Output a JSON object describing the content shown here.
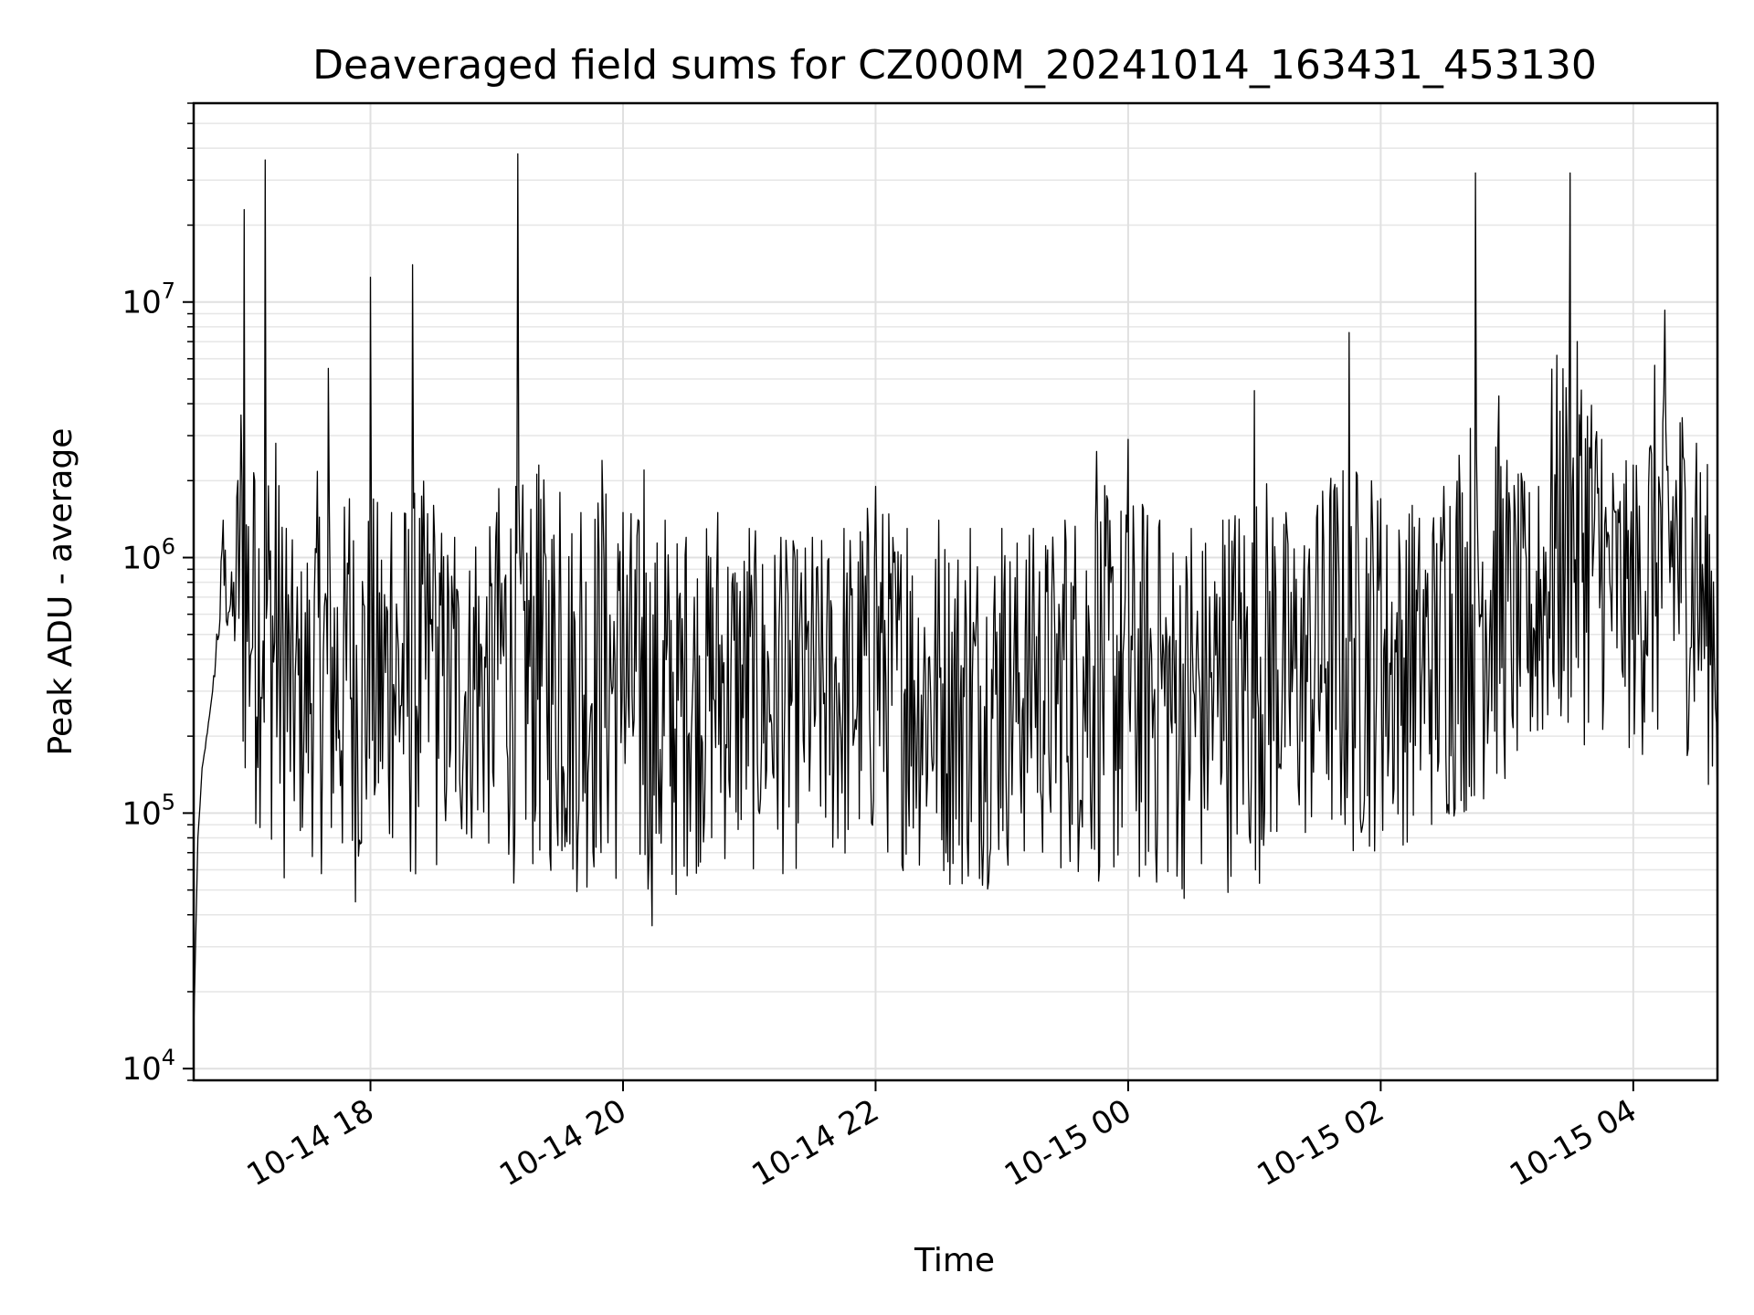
{
  "chart_data": {
    "type": "line",
    "title": "Deaveraged field sums for CZ000M_20241014_163431_453130",
    "xlabel": "Time",
    "ylabel": "Peak ADU - average",
    "yscale": "log",
    "ylim": [
      9000,
      60000000
    ],
    "xlim": [
      "2024-10-14 16:36",
      "2024-10-15 04:40"
    ],
    "grid": true,
    "legend": "none",
    "line_color": "#000000",
    "x_ticks": [
      {
        "label": "10-14 18",
        "value": "2024-10-14 18:00"
      },
      {
        "label": "10-14 20",
        "value": "2024-10-14 20:00"
      },
      {
        "label": "10-14 22",
        "value": "2024-10-14 22:00"
      },
      {
        "label": "10-15 00",
        "value": "2024-10-15 00:00"
      },
      {
        "label": "10-15 02",
        "value": "2024-10-15 02:00"
      },
      {
        "label": "10-15 04",
        "value": "2024-10-15 04:00"
      }
    ],
    "y_ticks": [
      {
        "base": "10",
        "exp": "4",
        "value": 10000
      },
      {
        "base": "10",
        "exp": "5",
        "value": 100000
      },
      {
        "base": "10",
        "exp": "6",
        "value": 1000000
      },
      {
        "base": "10",
        "exp": "7",
        "value": 10000000
      }
    ],
    "series": [
      {
        "x": [
          "2024-10-14 16:36",
          "2024-10-14 16:38",
          "2024-10-14 16:40",
          "2024-10-14 16:45",
          "2024-10-14 16:50",
          "2024-10-14 16:55",
          "2024-10-14 17:00",
          "2024-10-14 17:05",
          "2024-10-14 17:10",
          "2024-10-14 17:15",
          "2024-10-14 17:20",
          "2024-10-14 17:30",
          "2024-10-14 17:40",
          "2024-10-14 17:50",
          "2024-10-14 18:00",
          "2024-10-14 18:10",
          "2024-10-14 18:20",
          "2024-10-14 18:30",
          "2024-10-14 18:40",
          "2024-10-14 18:50",
          "2024-10-14 19:00",
          "2024-10-14 19:10",
          "2024-10-14 19:20",
          "2024-10-14 19:30",
          "2024-10-14 19:40",
          "2024-10-14 19:50",
          "2024-10-14 20:00",
          "2024-10-14 20:10",
          "2024-10-14 20:20",
          "2024-10-14 20:30",
          "2024-10-14 20:45",
          "2024-10-14 21:00",
          "2024-10-14 21:15",
          "2024-10-14 21:30",
          "2024-10-14 21:45",
          "2024-10-14 22:00",
          "2024-10-14 22:15",
          "2024-10-14 22:30",
          "2024-10-14 22:45",
          "2024-10-14 23:00",
          "2024-10-14 23:15",
          "2024-10-14 23:30",
          "2024-10-14 23:45",
          "2024-10-15 00:00",
          "2024-10-15 00:15",
          "2024-10-15 00:30",
          "2024-10-15 00:45",
          "2024-10-15 01:00",
          "2024-10-15 01:15",
          "2024-10-15 01:30",
          "2024-10-15 01:45",
          "2024-10-15 02:00",
          "2024-10-15 02:15",
          "2024-10-15 02:30",
          "2024-10-15 02:45",
          "2024-10-15 03:00",
          "2024-10-15 03:15",
          "2024-10-15 03:30",
          "2024-10-15 03:45",
          "2024-10-15 04:00",
          "2024-10-15 04:15",
          "2024-10-15 04:30",
          "2024-10-15 04:40"
        ],
        "y_high": [
          14000,
          80000,
          150000,
          300000,
          1400000,
          800000,
          23000000,
          2000000,
          36000000,
          2800000,
          1300000,
          950000,
          5500000,
          1700000,
          12500000,
          1500000,
          14000000,
          1600000,
          1200000,
          1100000,
          1500000,
          38000000,
          2300000,
          1800000,
          1500000,
          2400000,
          1500000,
          2200000,
          1400000,
          1200000,
          1500000,
          1300000,
          1200000,
          1200000,
          1300000,
          1900000,
          1300000,
          1400000,
          1300000,
          1300000,
          1300000,
          1400000,
          2600000,
          2900000,
          1400000,
          1300000,
          1400000,
          4500000,
          1500000,
          1600000,
          7600000,
          1700000,
          1600000,
          1900000,
          32000000,
          2400000,
          1900000,
          32000000,
          2900000,
          2300000,
          9300000,
          2800000,
          2100000
        ],
        "y_low": [
          14000,
          80000,
          140000,
          300000,
          500000,
          400000,
          100000,
          80000,
          90000,
          60000,
          50000,
          70000,
          50000,
          42000,
          45000,
          45000,
          48000,
          55000,
          60000,
          70000,
          60000,
          50000,
          55000,
          50000,
          45000,
          52000,
          45000,
          38000,
          30000,
          55000,
          60000,
          55000,
          55000,
          60000,
          55000,
          65000,
          58000,
          52000,
          45000,
          55000,
          60000,
          55000,
          50000,
          45000,
          45000,
          44000,
          48000,
          50000,
          65000,
          70000,
          60000,
          70000,
          75000,
          80000,
          100000,
          120000,
          150000,
          170000,
          200000,
          160000,
          150000,
          170000,
          100000
        ]
      }
    ]
  }
}
